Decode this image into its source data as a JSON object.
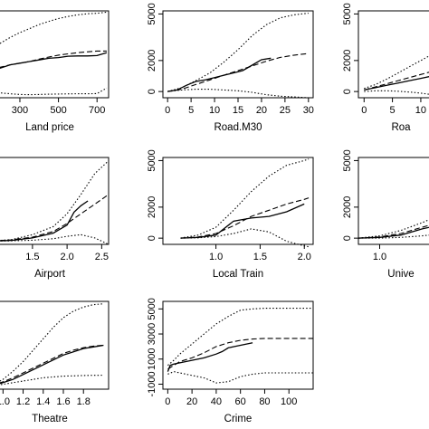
{
  "chart_data": [
    {
      "type": "line",
      "xlabel": "Land price",
      "xticks": [
        300,
        500,
        700
      ],
      "xtick_labels": [
        "300",
        "500",
        "700"
      ],
      "xlim": [
        150,
        760
      ],
      "yticks": [],
      "ytick_labels": [],
      "ylim": [
        -200,
        5200
      ],
      "series": [
        {
          "style": "solid",
          "x": [
            150,
            200,
            250,
            300,
            350,
            400,
            450,
            500,
            550,
            600,
            650,
            700,
            750
          ],
          "y": [
            1500,
            1650,
            1850,
            1950,
            2050,
            2150,
            2250,
            2300,
            2380,
            2400,
            2400,
            2420,
            2600
          ]
        },
        {
          "style": "dashed",
          "x": [
            150,
            200,
            250,
            300,
            350,
            400,
            450,
            500,
            550,
            600,
            650,
            700,
            750
          ],
          "y": [
            1550,
            1700,
            1850,
            1950,
            2050,
            2200,
            2330,
            2450,
            2530,
            2600,
            2650,
            2700,
            2700
          ]
        },
        {
          "style": "dotted",
          "x": [
            150,
            200,
            250,
            300,
            350,
            400,
            450,
            500,
            550,
            600,
            650,
            700,
            750
          ],
          "y": [
            2900,
            3200,
            3550,
            3850,
            4100,
            4350,
            4550,
            4720,
            4850,
            4950,
            5020,
            5050,
            5120
          ]
        },
        {
          "style": "dotted",
          "x": [
            150,
            200,
            250,
            300,
            350,
            400,
            450,
            500,
            550,
            600,
            650,
            700,
            750
          ],
          "y": [
            150,
            100,
            50,
            0,
            -10,
            0,
            20,
            30,
            40,
            50,
            50,
            60,
            400
          ]
        }
      ]
    },
    {
      "type": "line",
      "xlabel": "Road.M30",
      "xticks": [
        0,
        5,
        10,
        15,
        20,
        25,
        30
      ],
      "xtick_labels": [
        "0",
        "5",
        "10",
        "15",
        "20",
        "25",
        "30"
      ],
      "xlim": [
        -1,
        31
      ],
      "yticks": [
        0,
        2000,
        5000
      ],
      "ytick_labels": [
        "0",
        "2000",
        "5000"
      ],
      "ylim": [
        -400,
        5200
      ],
      "series": [
        {
          "style": "solid",
          "x": [
            0,
            2,
            4,
            6,
            8,
            10,
            12,
            14,
            16,
            18,
            20,
            22
          ],
          "y": [
            0,
            100,
            400,
            650,
            750,
            900,
            1050,
            1200,
            1350,
            1700,
            2050,
            2150
          ]
        },
        {
          "style": "dashed",
          "x": [
            0,
            3,
            6,
            9,
            12,
            15,
            18,
            21,
            24,
            27,
            30
          ],
          "y": [
            0,
            150,
            450,
            750,
            1050,
            1350,
            1650,
            1950,
            2200,
            2350,
            2450
          ]
        },
        {
          "style": "dotted",
          "x": [
            0,
            3,
            6,
            9,
            12,
            15,
            18,
            21,
            24,
            27,
            30
          ],
          "y": [
            0,
            250,
            700,
            1200,
            1900,
            2700,
            3600,
            4300,
            4750,
            4950,
            5050
          ]
        },
        {
          "style": "dotted",
          "x": [
            0,
            3,
            6,
            9,
            12,
            15,
            18,
            21,
            24,
            27,
            30
          ],
          "y": [
            0,
            100,
            150,
            150,
            100,
            50,
            -50,
            -200,
            -300,
            -350,
            -400
          ]
        }
      ]
    },
    {
      "type": "line",
      "xlabel": "Roa",
      "xticks": [
        0,
        5,
        10
      ],
      "xtick_labels": [
        "0",
        "5",
        "10"
      ],
      "xlim": [
        -1,
        14
      ],
      "yticks": [
        0,
        2000,
        5000
      ],
      "ytick_labels": [
        "0",
        "2000",
        "5000"
      ],
      "ylim": [
        -400,
        5200
      ],
      "series": [
        {
          "style": "solid",
          "x": [
            0,
            2,
            4,
            6,
            8,
            10,
            12,
            14
          ],
          "y": [
            100,
            250,
            400,
            550,
            700,
            850,
            1000,
            1150
          ]
        },
        {
          "style": "dashed",
          "x": [
            0,
            2,
            4,
            6,
            8,
            10,
            12,
            14
          ],
          "y": [
            100,
            300,
            500,
            700,
            900,
            1100,
            1300,
            1500
          ]
        },
        {
          "style": "dotted",
          "x": [
            0,
            2,
            4,
            6,
            8,
            10,
            12,
            14
          ],
          "y": [
            200,
            450,
            800,
            1200,
            1600,
            2000,
            2400,
            2800
          ]
        },
        {
          "style": "dotted",
          "x": [
            0,
            2,
            4,
            6,
            8,
            10,
            12,
            14
          ],
          "y": [
            0,
            50,
            50,
            20,
            -30,
            -100,
            -200,
            -300
          ]
        }
      ]
    },
    {
      "type": "line",
      "xlabel": "Airport",
      "xticks": [
        1.5,
        2.0,
        2.5
      ],
      "xtick_labels": [
        "1.5",
        "2.0",
        "2.5"
      ],
      "xlim": [
        0.9,
        2.6
      ],
      "yticks": [],
      "ytick_labels": [],
      "ylim": [
        -200,
        5200
      ],
      "series": [
        {
          "style": "solid",
          "x": [
            0.9,
            1.2,
            1.5,
            1.8,
            2.0,
            2.1,
            2.2,
            2.3
          ],
          "y": [
            0,
            50,
            200,
            500,
            1000,
            1800,
            2200,
            2500
          ]
        },
        {
          "style": "dashed",
          "x": [
            0.9,
            1.2,
            1.5,
            1.8,
            2.0,
            2.2,
            2.4,
            2.6
          ],
          "y": [
            0,
            80,
            250,
            600,
            1100,
            1700,
            2300,
            2900
          ]
        },
        {
          "style": "dotted",
          "x": [
            0.9,
            1.2,
            1.5,
            1.8,
            2.0,
            2.2,
            2.4,
            2.6
          ],
          "y": [
            0,
            100,
            400,
            900,
            1700,
            2900,
            4200,
            5000
          ]
        },
        {
          "style": "dotted",
          "x": [
            0.9,
            1.2,
            1.5,
            1.8,
            2.0,
            2.2,
            2.4,
            2.6
          ],
          "y": [
            0,
            20,
            60,
            150,
            300,
            400,
            200,
            -200
          ]
        }
      ]
    },
    {
      "type": "line",
      "xlabel": "Local Train",
      "xticks": [
        1.0,
        1.5,
        2.0
      ],
      "xtick_labels": [
        "1.0",
        "1.5",
        "2.0"
      ],
      "xlim": [
        0.4,
        2.1
      ],
      "yticks": [
        0,
        2000,
        5000
      ],
      "ytick_labels": [
        "0",
        "2000",
        "5000"
      ],
      "ylim": [
        -400,
        5200
      ],
      "series": [
        {
          "style": "solid",
          "x": [
            0.6,
            0.8,
            1.0,
            1.2,
            1.4,
            1.6,
            1.8,
            2.0
          ],
          "y": [
            0,
            50,
            200,
            1100,
            1300,
            1400,
            1700,
            2200
          ]
        },
        {
          "style": "dashed",
          "x": [
            0.6,
            0.8,
            1.0,
            1.2,
            1.4,
            1.6,
            1.8,
            2.0,
            2.05
          ],
          "y": [
            0,
            80,
            300,
            800,
            1400,
            1800,
            2200,
            2500,
            2600
          ]
        },
        {
          "style": "dotted",
          "x": [
            0.6,
            0.8,
            1.0,
            1.2,
            1.4,
            1.6,
            1.8,
            2.0,
            2.05
          ],
          "y": [
            0,
            200,
            700,
            1800,
            3000,
            4000,
            4700,
            5000,
            5100
          ]
        },
        {
          "style": "dotted",
          "x": [
            0.6,
            0.8,
            1.0,
            1.2,
            1.4,
            1.6,
            1.8,
            2.0,
            2.05
          ],
          "y": [
            0,
            20,
            100,
            300,
            600,
            400,
            -200,
            -500,
            -550
          ]
        }
      ]
    },
    {
      "type": "line",
      "xlabel": "Unive",
      "xticks": [
        1.0,
        1.5
      ],
      "xtick_labels": [
        "1.0",
        "1."
      ],
      "xlim": [
        0.8,
        1.6
      ],
      "yticks": [
        0,
        2000,
        5000
      ],
      "ytick_labels": [
        "0",
        "2000",
        "5000"
      ],
      "ylim": [
        -400,
        5200
      ],
      "series": [
        {
          "style": "solid",
          "x": [
            0.8,
            1.0,
            1.2,
            1.4,
            1.6
          ],
          "y": [
            0,
            50,
            200,
            600,
            900
          ]
        },
        {
          "style": "dashed",
          "x": [
            0.8,
            1.0,
            1.2,
            1.4,
            1.6
          ],
          "y": [
            0,
            80,
            300,
            700,
            1100
          ]
        },
        {
          "style": "dotted",
          "x": [
            0.8,
            1.0,
            1.2,
            1.4,
            1.6
          ],
          "y": [
            0,
            150,
            500,
            1000,
            1600
          ]
        },
        {
          "style": "dotted",
          "x": [
            0.8,
            1.0,
            1.2,
            1.4,
            1.6
          ],
          "y": [
            0,
            0,
            50,
            150,
            300
          ]
        }
      ]
    },
    {
      "type": "line",
      "xlabel": "Theatre",
      "xticks": [
        1.0,
        1.2,
        1.4,
        1.6,
        1.8
      ],
      "xtick_labels": [
        "1.0",
        "1.2",
        "1.4",
        "1.6",
        "1.8"
      ],
      "xlim": [
        0.88,
        2.05
      ],
      "yticks": [],
      "ytick_labels": [],
      "ylim": [
        -200,
        5200
      ],
      "series": [
        {
          "style": "solid",
          "x": [
            0.88,
            1.0,
            1.1,
            1.2,
            1.3,
            1.4,
            1.5,
            1.6,
            1.7,
            1.8,
            1.9,
            2.0
          ],
          "y": [
            0,
            200,
            400,
            700,
            1000,
            1300,
            1600,
            1900,
            2100,
            2300,
            2400,
            2500
          ]
        },
        {
          "style": "dashed",
          "x": [
            0.88,
            1.0,
            1.1,
            1.2,
            1.3,
            1.4,
            1.5,
            1.6,
            1.7,
            1.8,
            1.9,
            2.0
          ],
          "y": [
            0,
            250,
            500,
            800,
            1100,
            1400,
            1700,
            2000,
            2200,
            2350,
            2450,
            2500
          ]
        },
        {
          "style": "dotted",
          "x": [
            0.88,
            1.0,
            1.1,
            1.2,
            1.3,
            1.4,
            1.5,
            1.6,
            1.7,
            1.8,
            1.9,
            2.0
          ],
          "y": [
            0,
            400,
            900,
            1500,
            2200,
            2900,
            3600,
            4200,
            4600,
            4850,
            5000,
            5050
          ]
        },
        {
          "style": "dotted",
          "x": [
            0.88,
            1.0,
            1.1,
            1.2,
            1.3,
            1.4,
            1.5,
            1.6,
            1.7,
            1.8,
            1.9,
            2.0
          ],
          "y": [
            0,
            100,
            200,
            300,
            400,
            500,
            550,
            600,
            620,
            640,
            650,
            660
          ]
        }
      ]
    },
    {
      "type": "line",
      "xlabel": "Crime",
      "xticks": [
        0,
        20,
        40,
        60,
        80,
        100
      ],
      "xtick_labels": [
        "0",
        "20",
        "40",
        "60",
        "80",
        "100"
      ],
      "xlim": [
        -4,
        120
      ],
      "yticks": [
        -1000,
        1000,
        3000,
        5000
      ],
      "ytick_labels": [
        "-1000",
        "1000",
        "3000",
        "5000"
      ],
      "ylim": [
        -1400,
        5600
      ],
      "series": [
        {
          "style": "solid",
          "x": [
            0,
            2,
            5,
            10,
            20,
            30,
            40,
            45,
            50,
            55,
            60,
            65,
            70
          ],
          "y": [
            0,
            500,
            600,
            700,
            900,
            1100,
            1400,
            1600,
            1900,
            2000,
            2100,
            2200,
            2300
          ]
        },
        {
          "style": "dashed",
          "x": [
            0,
            5,
            10,
            20,
            30,
            40,
            50,
            60,
            70,
            80,
            100,
            120
          ],
          "y": [
            200,
            500,
            800,
            1100,
            1500,
            2000,
            2300,
            2500,
            2600,
            2650,
            2650,
            2650
          ]
        },
        {
          "style": "dotted",
          "x": [
            0,
            5,
            10,
            20,
            30,
            40,
            50,
            60,
            70,
            80,
            100,
            120
          ],
          "y": [
            500,
            900,
            1400,
            2200,
            3000,
            3800,
            4400,
            4900,
            5000,
            5050,
            5050,
            5050
          ]
        },
        {
          "style": "dotted",
          "x": [
            0,
            5,
            10,
            20,
            30,
            40,
            50,
            60,
            70,
            80,
            100,
            120
          ],
          "y": [
            -200,
            0,
            -100,
            -300,
            -500,
            -900,
            -800,
            -400,
            -200,
            -100,
            -100,
            -100
          ]
        }
      ]
    }
  ]
}
